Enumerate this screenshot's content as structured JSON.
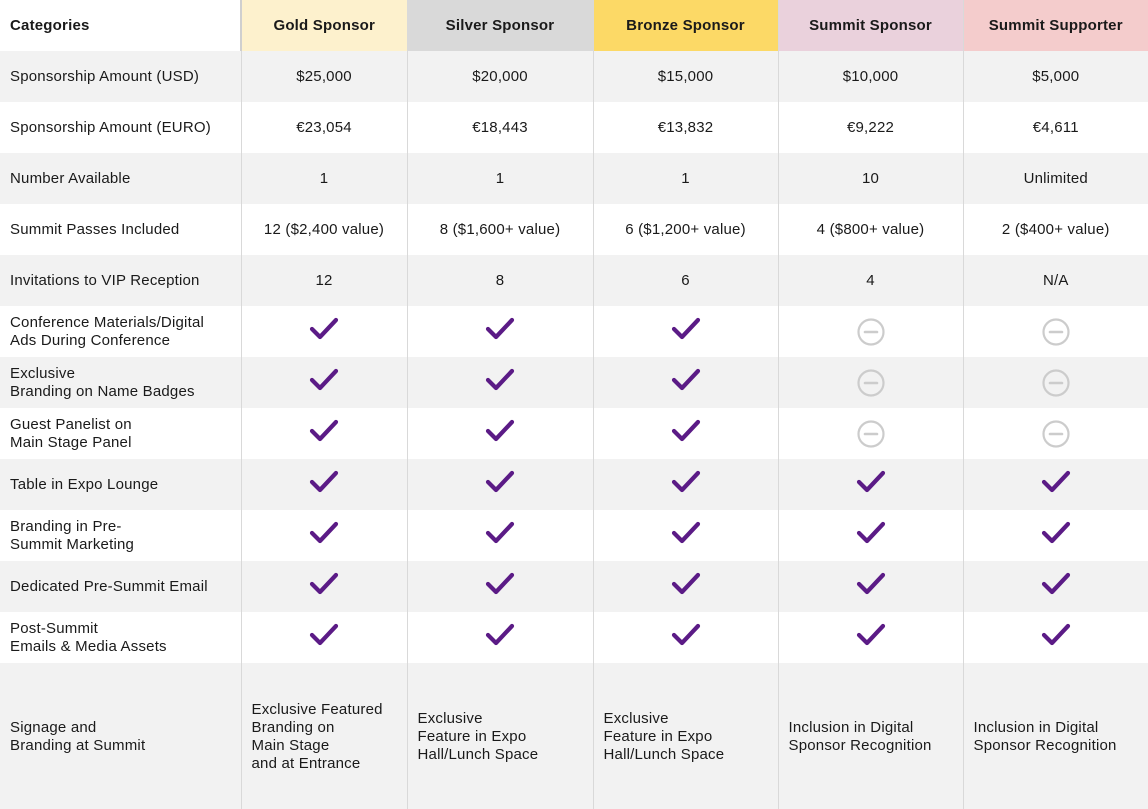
{
  "colors": {
    "check": "#5b1b86",
    "minus": "#cccccc",
    "gold_header": "#fdf1cd",
    "silver_header": "#d9d9d9",
    "bronze_header": "#fcd966",
    "summit_header": "#ead1dc",
    "supporter_header": "#f4cccc",
    "zebra": "#f2f2f2"
  },
  "header": {
    "categories": "Categories",
    "tiers": [
      "Gold Sponsor",
      "Silver Sponsor",
      "Bronze Sponsor",
      "Summit Sponsor",
      "Summit Supporter"
    ]
  },
  "rows": [
    {
      "label": "Sponsorship Amount (USD)",
      "values": [
        "$25,000",
        "$20,000",
        "$15,000",
        "$10,000",
        "$5,000"
      ]
    },
    {
      "label": "Sponsorship Amount (EURO)",
      "values": [
        "€23,054",
        "€18,443",
        "€13,832",
        "€9,222",
        "€4,611"
      ]
    },
    {
      "label": "Number Available",
      "values": [
        "1",
        "1",
        "1",
        "10",
        "Unlimited"
      ]
    },
    {
      "label": "Summit Passes Included",
      "values": [
        "12 ($2,400 value)",
        "8 ($1,600+ value)",
        "6 ($1,200+ value)",
        "4 ($800+ value)",
        "2 ($400+ value)"
      ]
    },
    {
      "label": "Invitations to VIP Reception",
      "values": [
        "12",
        "8",
        "6",
        "4",
        "N/A"
      ]
    }
  ],
  "feature_rows": [
    {
      "label": "Conference Materials/Digital\nAds During Conference",
      "marks": [
        "check-icon",
        "check-icon",
        "check-icon",
        "minus-circle-icon",
        "minus-circle-icon"
      ]
    },
    {
      "label": "Exclusive\nBranding on Name Badges",
      "marks": [
        "check-icon",
        "check-icon",
        "check-icon",
        "minus-circle-icon",
        "minus-circle-icon"
      ]
    },
    {
      "label": "Guest Panelist on\nMain Stage Panel",
      "marks": [
        "check-icon",
        "check-icon",
        "check-icon",
        "minus-circle-icon",
        "minus-circle-icon"
      ]
    },
    {
      "label": "Table in Expo Lounge",
      "marks": [
        "check-icon",
        "check-icon",
        "check-icon",
        "check-icon",
        "check-icon"
      ]
    },
    {
      "label": "Branding in Pre-\nSummit Marketing",
      "marks": [
        "check-icon",
        "check-icon",
        "check-icon",
        "check-icon",
        "check-icon"
      ]
    },
    {
      "label": "Dedicated Pre-Summit Email",
      "marks": [
        "check-icon",
        "check-icon",
        "check-icon",
        "check-icon",
        "check-icon"
      ]
    },
    {
      "label": "Post-Summit\nEmails & Media Assets",
      "marks": [
        "check-icon",
        "check-icon",
        "check-icon",
        "check-icon",
        "check-icon"
      ]
    }
  ],
  "signage": {
    "label": "Signage and\nBranding at Summit",
    "values": [
      "Exclusive Featured\nBranding on\nMain Stage\nand at Entrance",
      "Exclusive\nFeature in Expo\nHall/Lunch Space",
      "Exclusive\nFeature in Expo\nHall/Lunch Space",
      "Inclusion in Digital\nSponsor Recognition",
      "Inclusion in Digital\nSponsor Recognition"
    ]
  }
}
